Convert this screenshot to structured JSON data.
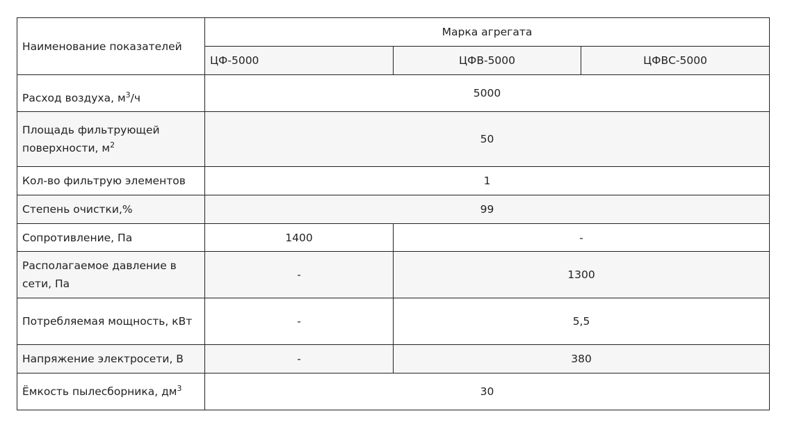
{
  "header": {
    "name_col": "Наименование показателей",
    "group": "Марка агрегата",
    "models": [
      "ЦФ-5000",
      "ЦФВ-5000",
      "ЦФВС-5000"
    ]
  },
  "rows": [
    {
      "label": "Расход воздуха, м",
      "sup": "3",
      "suffix": "/ч",
      "value": "5000"
    },
    {
      "label": "Площадь фильтрующей поверхности, м",
      "sup": "2",
      "value": "50"
    },
    {
      "label": "Кол-во фильтрую элементов",
      "value": "1"
    },
    {
      "label": "Степень очистки,%",
      "value": "99"
    },
    {
      "label": "Сопротивление, Па",
      "v1": "1400",
      "v2": "-"
    },
    {
      "label": "Располагаемое давление в сети, Па",
      "v1": "-",
      "v2": "1300"
    },
    {
      "label": "Потребляемая мощность, кВт",
      "v1": "-",
      "v2": "5,5"
    },
    {
      "label": "Напряжение электросети, В",
      "v1": "-",
      "v2": "380"
    },
    {
      "label": "Ёмкость пылесборника, дм",
      "sup": "3",
      "value": "30"
    }
  ]
}
